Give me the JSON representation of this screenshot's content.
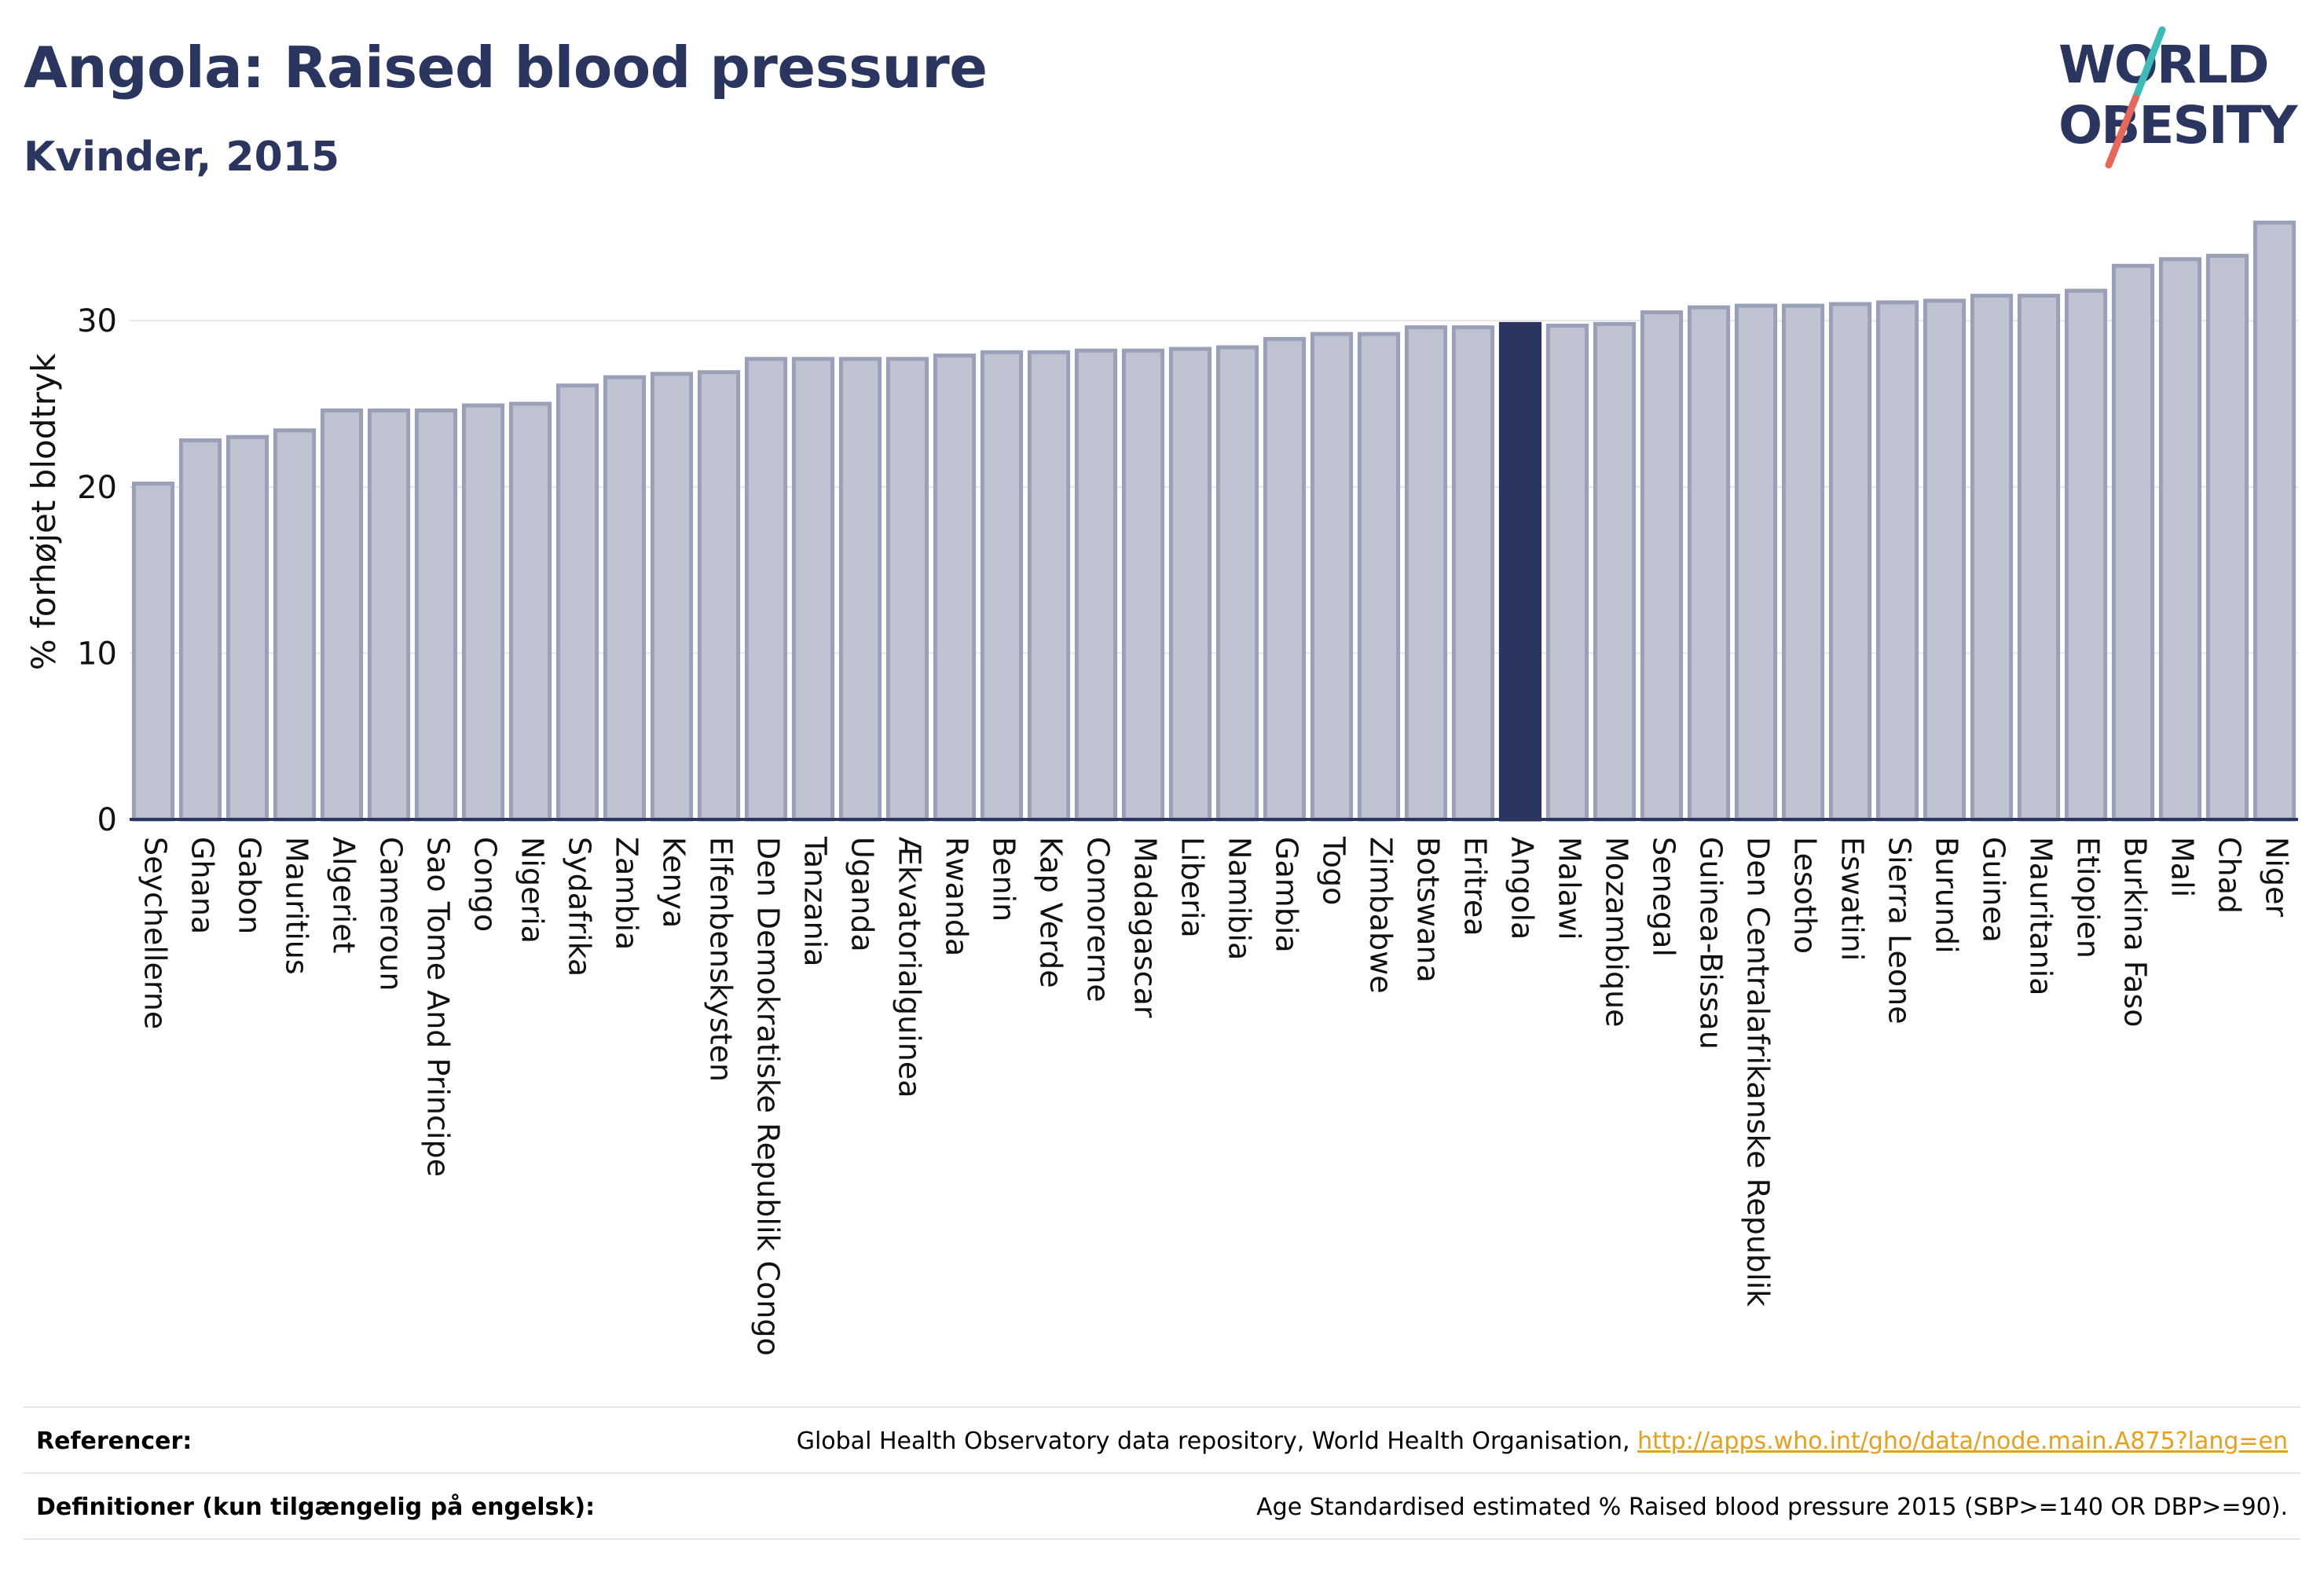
{
  "header": {
    "title": "Angola: Raised blood pressure",
    "subtitle": "Kvinder, 2015"
  },
  "logo": {
    "line1": "WORLD",
    "line2": "OBESITY"
  },
  "colors": {
    "title": "#2a3560",
    "bar_fill": "#bfc3d1",
    "bar_stroke": "#9aa0b8",
    "highlight": "#2a3560",
    "grid": "#e6e6e6",
    "link": "#e8a01a",
    "logo_teal": "#3bbcb8",
    "logo_red": "#e8675a"
  },
  "chart_data": {
    "type": "bar",
    "title": "Angola: Raised blood pressure",
    "subtitle": "Kvinder, 2015",
    "xlabel": "",
    "ylabel": "% forhøjet blodtryk",
    "ylim": [
      0,
      37
    ],
    "yticks": [
      0,
      10,
      20,
      30
    ],
    "grid": true,
    "highlight": "Angola",
    "categories": [
      "Seychellerne",
      "Ghana",
      "Gabon",
      "Mauritius",
      "Algeriet",
      "Cameroun",
      "Sao Tome And Principe",
      "Congo",
      "Nigeria",
      "Sydafrika",
      "Zambia",
      "Kenya",
      "Elfenbenskysten",
      "Den Demokratiske Republik Congo",
      "Tanzania",
      "Uganda",
      "Ækvatorialguinea",
      "Rwanda",
      "Benin",
      "Kap Verde",
      "Comorerne",
      "Madagascar",
      "Liberia",
      "Namibia",
      "Gambia",
      "Togo",
      "Zimbabwe",
      "Botswana",
      "Eritrea",
      "Angola",
      "Malawi",
      "Mozambique",
      "Senegal",
      "Guinea-Bissau",
      "Den Centralafrikanske Republik",
      "Lesotho",
      "Eswatini",
      "Sierra Leone",
      "Burundi",
      "Guinea",
      "Mauritania",
      "Etiopien",
      "Burkina Faso",
      "Mali",
      "Chad",
      "Niger"
    ],
    "values": [
      20.2,
      22.8,
      23.0,
      23.4,
      24.6,
      24.6,
      24.6,
      24.9,
      25.0,
      26.1,
      26.6,
      26.8,
      26.9,
      27.7,
      27.7,
      27.7,
      27.7,
      27.9,
      28.1,
      28.1,
      28.2,
      28.2,
      28.3,
      28.4,
      28.9,
      29.2,
      29.2,
      29.6,
      29.6,
      29.8,
      29.7,
      29.8,
      30.5,
      30.8,
      30.9,
      30.9,
      31.0,
      31.1,
      31.2,
      31.5,
      31.5,
      31.8,
      33.3,
      33.7,
      33.9,
      35.9
    ]
  },
  "footer": {
    "references_label": "Referencer:",
    "references_text": "Global Health Observatory data repository, World Health Organisation,",
    "references_link": "http://apps.who.int/gho/data/node.main.A875?lang=en",
    "definitions_label": "Definitioner (kun tilgængelig på engelsk):",
    "definitions_text": "Age Standardised estimated % Raised blood pressure 2015 (SBP>=140 OR DBP>=90)."
  }
}
